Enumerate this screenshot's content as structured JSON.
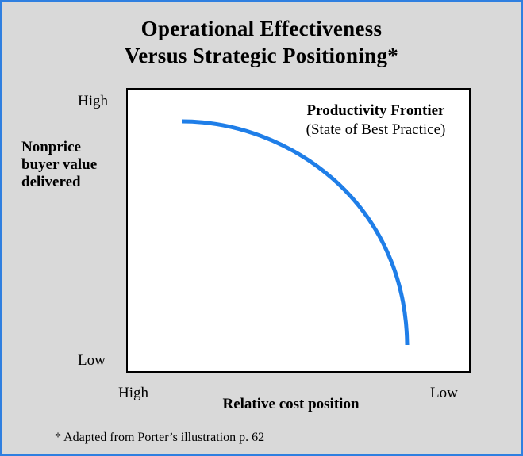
{
  "title": {
    "line1": "Operational Effectiveness",
    "line2": "Versus Strategic Positioning*"
  },
  "y_axis": {
    "label_lines": [
      "Nonprice",
      "buyer value",
      "delivered"
    ],
    "high": "High",
    "low": "Low"
  },
  "x_axis": {
    "label": "Relative cost position",
    "high": "High",
    "low": "Low"
  },
  "frontier": {
    "title": "Productivity Frontier",
    "subtitle": "(State of Best Practice)",
    "color": "#1f7ee8"
  },
  "footnote": "* Adapted from Porter’s illustration p. 62"
}
